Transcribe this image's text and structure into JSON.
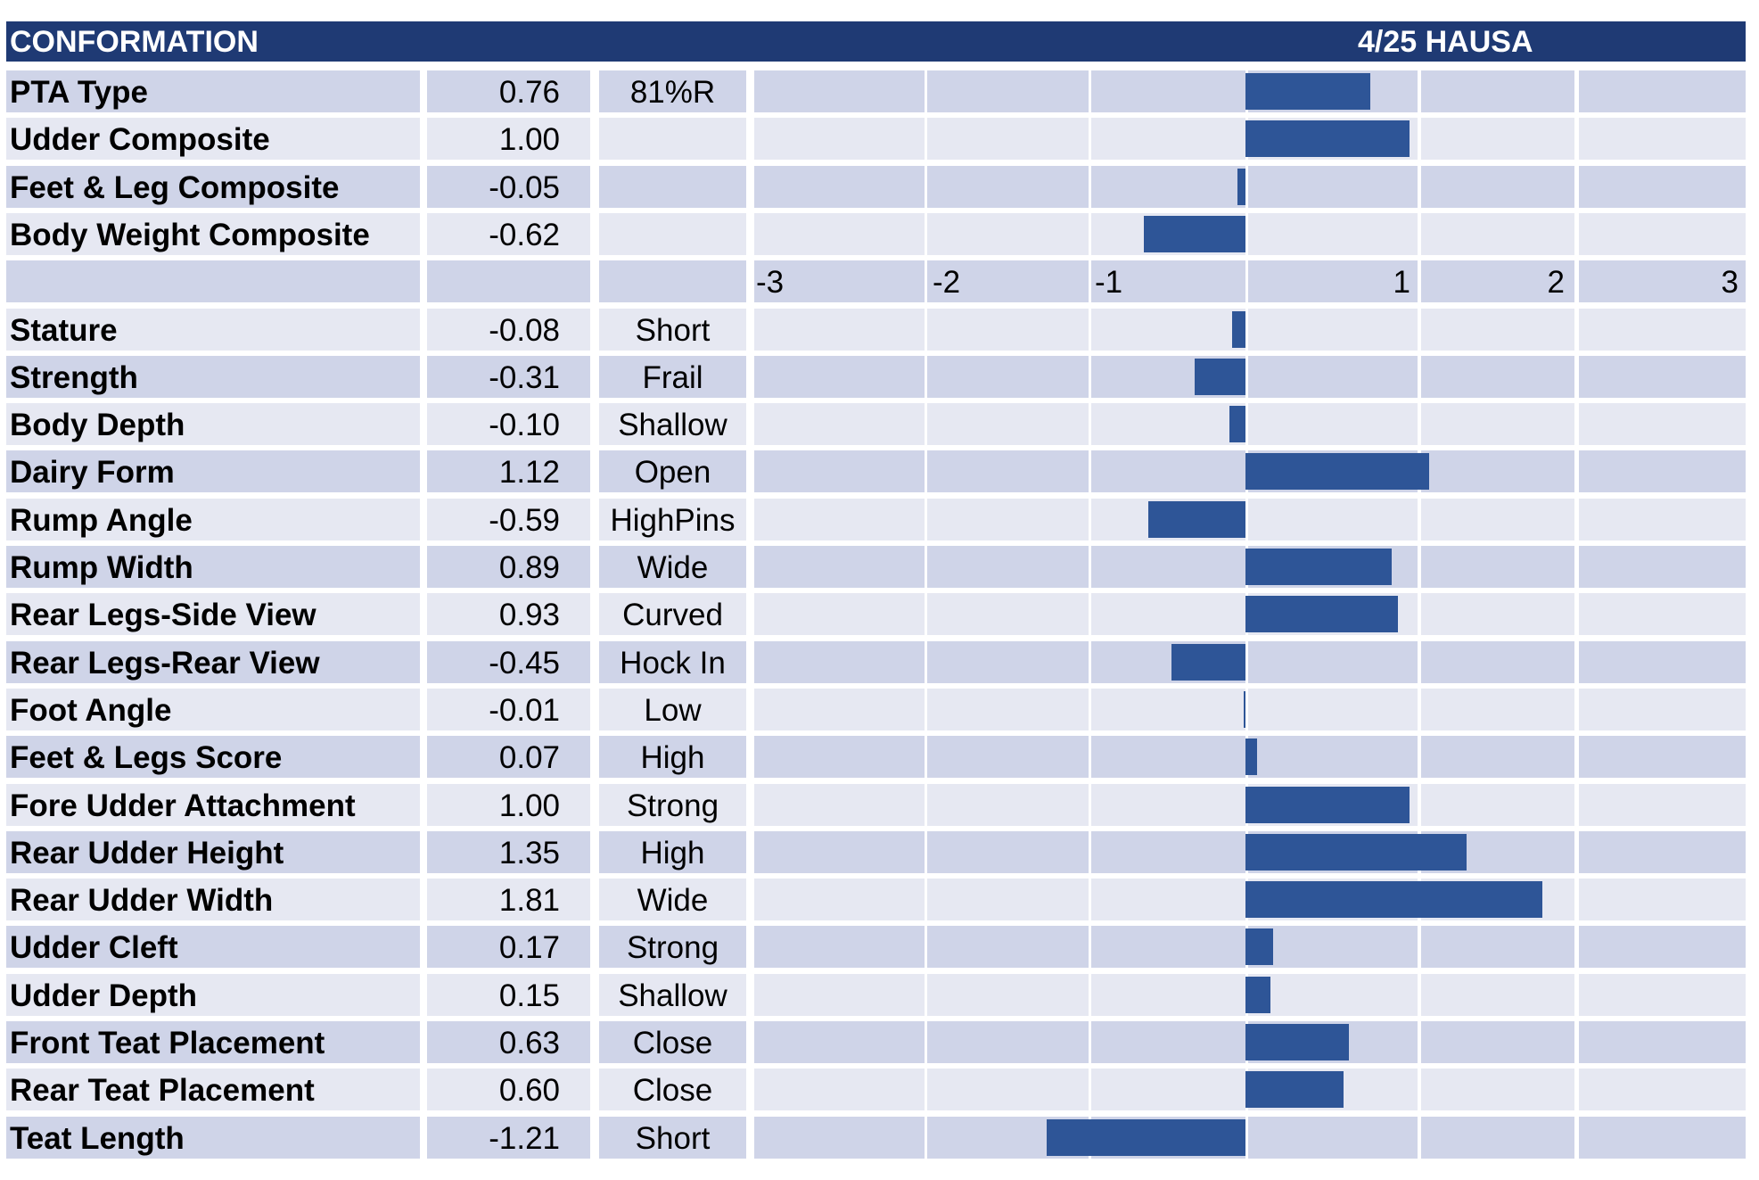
{
  "header": {
    "title": "CONFORMATION",
    "right_label": "4/25 HAUSA"
  },
  "colors": {
    "header": "#1f3a74",
    "bar": "#2e5597",
    "row_dark": "#cfd4e8",
    "row_light": "#e6e8f2"
  },
  "chart_data": {
    "type": "bar",
    "orientation": "horizontal",
    "xlim": [
      -3,
      3
    ],
    "x_ticks": [
      "-3",
      "-2",
      "-1",
      "1",
      "2",
      "3"
    ],
    "composites": [
      {
        "name": "PTA Type",
        "value": 0.76,
        "value_label": "0.76",
        "desc": "81%R"
      },
      {
        "name": "Udder Composite",
        "value": 1.0,
        "value_label": "1.00",
        "desc": ""
      },
      {
        "name": "Feet & Leg Composite",
        "value": -0.05,
        "value_label": "-0.05",
        "desc": ""
      },
      {
        "name": "Body Weight Composite",
        "value": -0.62,
        "value_label": "-0.62",
        "desc": ""
      }
    ],
    "traits": [
      {
        "name": "Stature",
        "value": -0.08,
        "value_label": "-0.08",
        "desc": "Short"
      },
      {
        "name": "Strength",
        "value": -0.31,
        "value_label": "-0.31",
        "desc": "Frail"
      },
      {
        "name": "Body Depth",
        "value": -0.1,
        "value_label": "-0.10",
        "desc": "Shallow"
      },
      {
        "name": "Dairy Form",
        "value": 1.12,
        "value_label": "1.12",
        "desc": "Open"
      },
      {
        "name": "Rump Angle",
        "value": -0.59,
        "value_label": "-0.59",
        "desc": "HighPins"
      },
      {
        "name": "Rump Width",
        "value": 0.89,
        "value_label": "0.89",
        "desc": "Wide"
      },
      {
        "name": "Rear Legs-Side View",
        "value": 0.93,
        "value_label": "0.93",
        "desc": "Curved"
      },
      {
        "name": "Rear Legs-Rear View",
        "value": -0.45,
        "value_label": "-0.45",
        "desc": "Hock In"
      },
      {
        "name": "Foot Angle",
        "value": -0.01,
        "value_label": "-0.01",
        "desc": "Low"
      },
      {
        "name": "Feet & Legs Score",
        "value": 0.07,
        "value_label": "0.07",
        "desc": "High"
      },
      {
        "name": "Fore Udder Attachment",
        "value": 1.0,
        "value_label": "1.00",
        "desc": "Strong"
      },
      {
        "name": "Rear Udder Height",
        "value": 1.35,
        "value_label": "1.35",
        "desc": "High"
      },
      {
        "name": "Rear Udder Width",
        "value": 1.81,
        "value_label": "1.81",
        "desc": "Wide"
      },
      {
        "name": "Udder Cleft",
        "value": 0.17,
        "value_label": "0.17",
        "desc": "Strong"
      },
      {
        "name": "Udder Depth",
        "value": 0.15,
        "value_label": "0.15",
        "desc": "Shallow"
      },
      {
        "name": "Front Teat Placement",
        "value": 0.63,
        "value_label": "0.63",
        "desc": "Close"
      },
      {
        "name": "Rear Teat Placement",
        "value": 0.6,
        "value_label": "0.60",
        "desc": "Close"
      },
      {
        "name": "Teat Length",
        "value": -1.21,
        "value_label": "-1.21",
        "desc": "Short"
      }
    ]
  }
}
